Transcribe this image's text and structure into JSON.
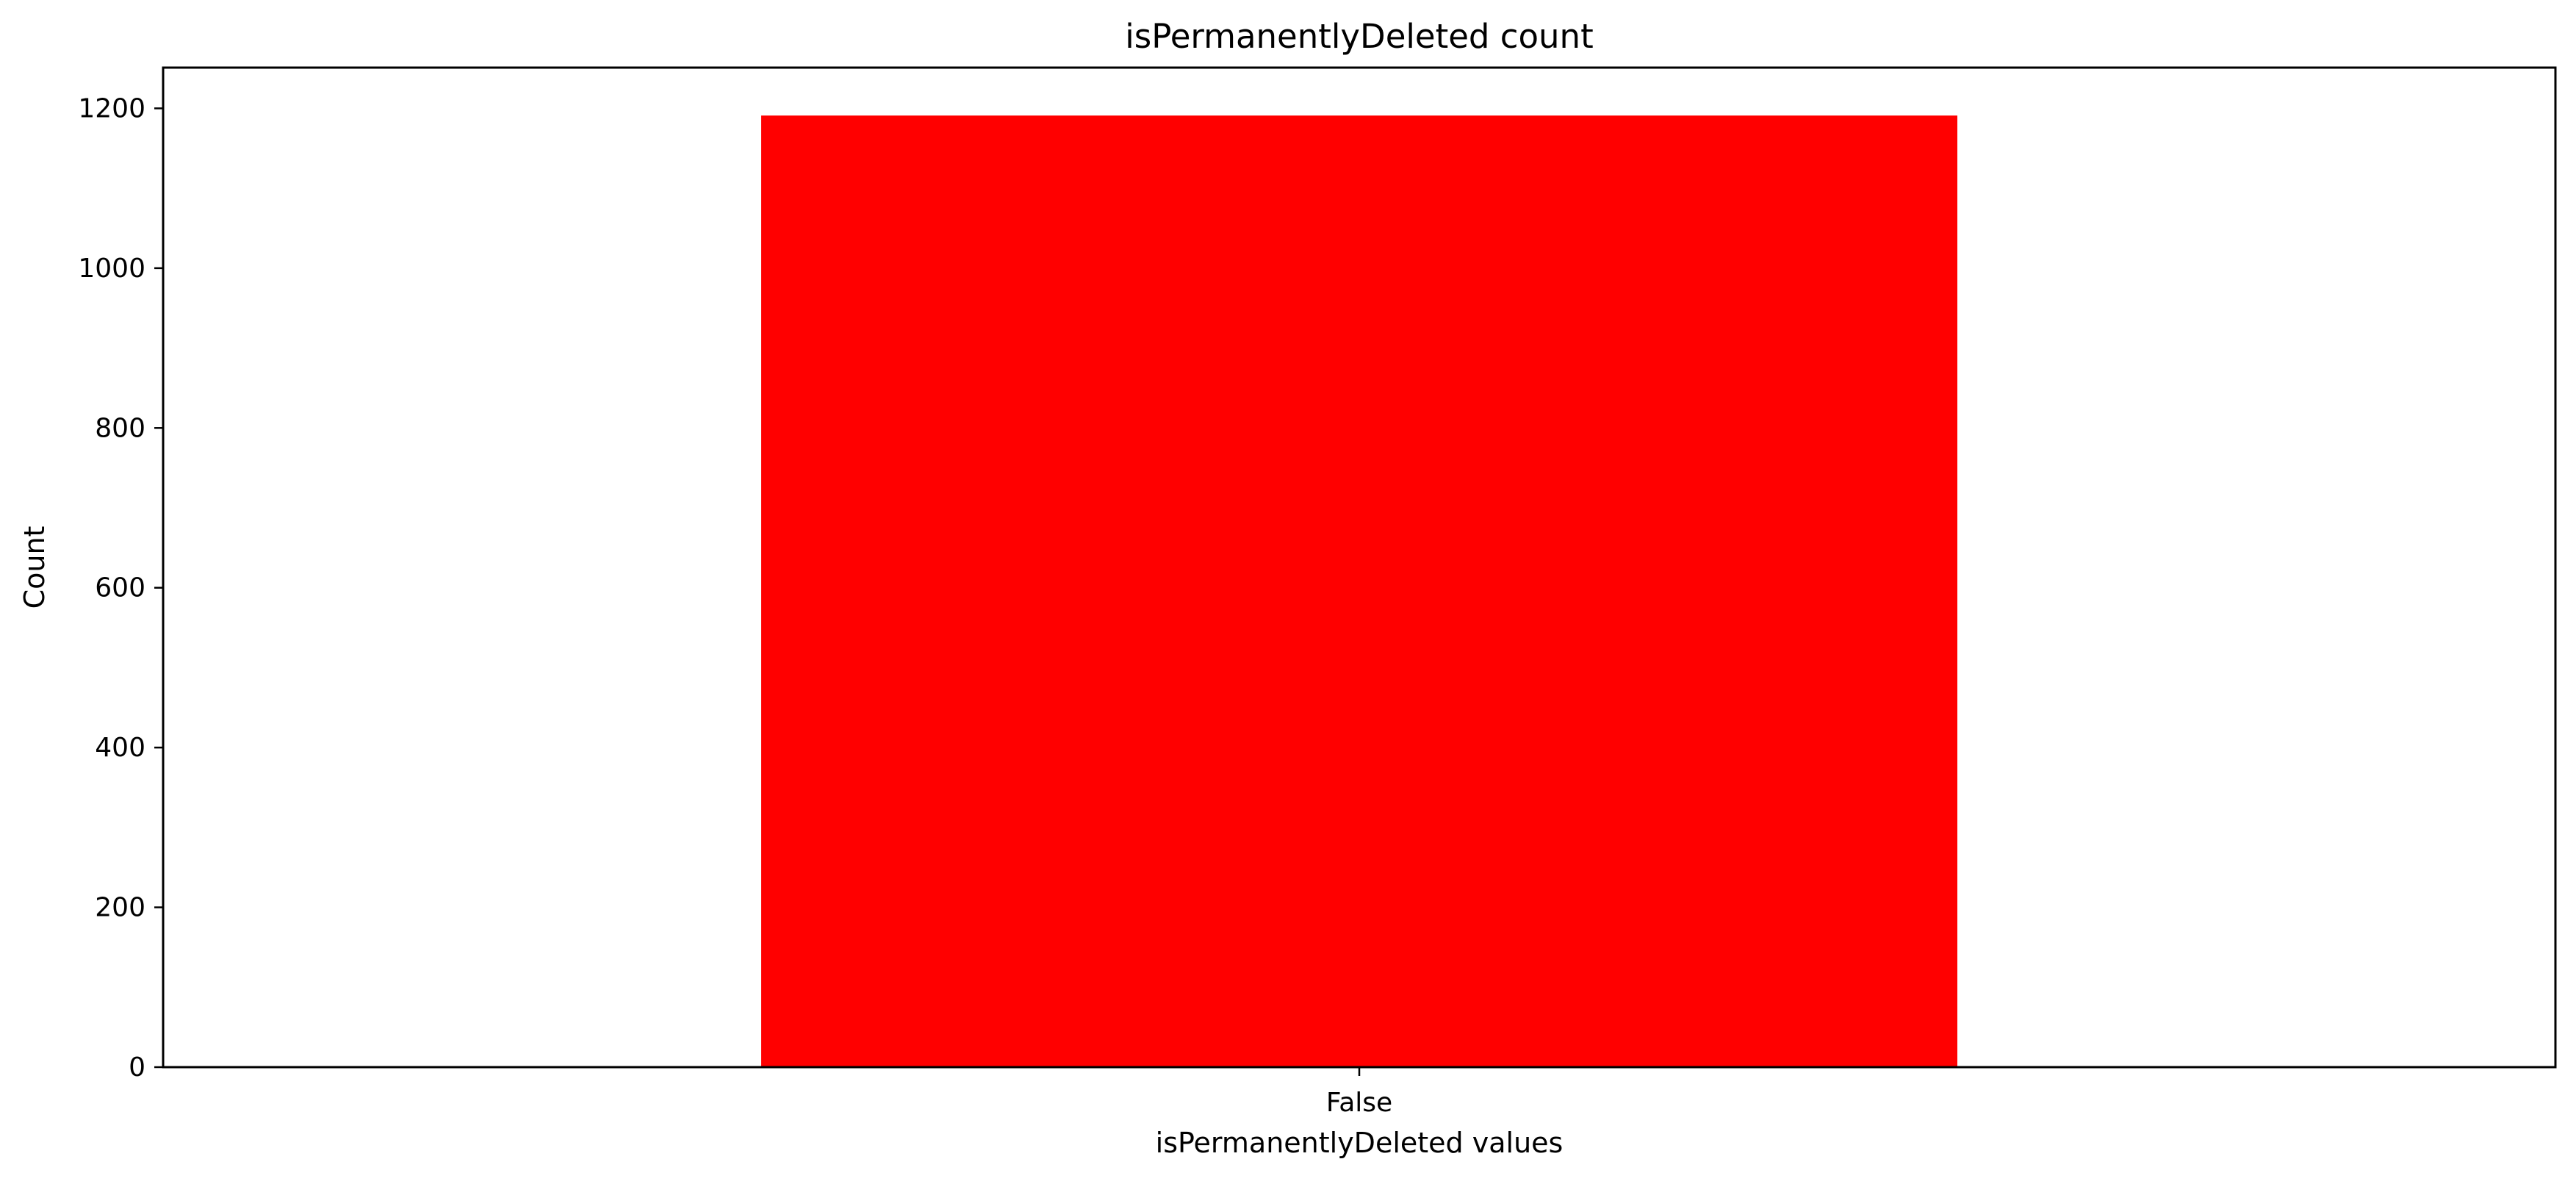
{
  "chart_data": {
    "type": "bar",
    "title": "isPermanentlyDeleted  count",
    "xlabel": "isPermanentlyDeleted values",
    "ylabel": "Count",
    "categories": [
      "False"
    ],
    "values": [
      1191
    ],
    "ylim": [
      0,
      1251
    ],
    "yticks": [
      0,
      200,
      400,
      600,
      800,
      1000,
      1200
    ],
    "grid": false,
    "legend": "none",
    "colors": {
      "bar": "#ff0000",
      "axes": "#000000",
      "background": "#ffffff"
    }
  }
}
